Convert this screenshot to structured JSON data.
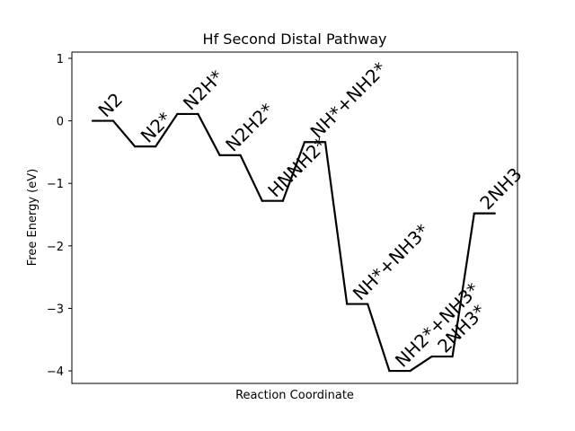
{
  "chart_data": {
    "type": "line",
    "title": "Hf Second Distal Pathway",
    "xlabel": "Reaction Coordinate",
    "ylabel": "Free Energy (eV)",
    "ylim": [
      -4.2,
      1.1
    ],
    "yticks": [
      1,
      0,
      -1,
      -2,
      -3,
      -4
    ],
    "ytick_labels": [
      "1",
      "0",
      "−1",
      "−2",
      "−3",
      "−4"
    ],
    "grid": false,
    "legend": "none",
    "line_color": "#000000",
    "states": [
      {
        "label": "N2",
        "energy": 0.0
      },
      {
        "label": "N2*",
        "energy": -0.41
      },
      {
        "label": "N2H*",
        "energy": 0.11
      },
      {
        "label": "N2H2*",
        "energy": -0.55
      },
      {
        "label": "HNNH2*",
        "energy": -1.28
      },
      {
        "label": "NH*+NH2*",
        "energy": -0.34
      },
      {
        "label": "NH*+NH3*",
        "energy": -2.93
      },
      {
        "label": "NH2*+NH3*",
        "energy": -4.0
      },
      {
        "label": "2NH3*",
        "energy": -3.77
      },
      {
        "label": "2NH3",
        "energy": -1.48
      }
    ]
  }
}
